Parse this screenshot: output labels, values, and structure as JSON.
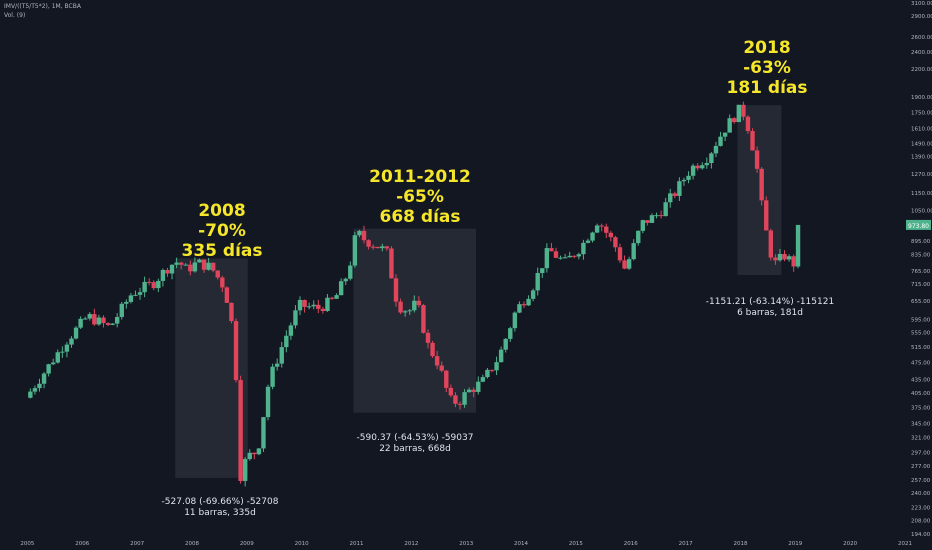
{
  "header": {
    "symbol": "IMV/((T5/T5*2), 1M, BCBA",
    "volume": "Vol. (9)"
  },
  "colors": {
    "background": "#131722",
    "up": "#4fb38d",
    "down": "#e0455c",
    "annotation": "#f5e62a",
    "price_tag": "#4fb38d"
  },
  "annotations": [
    {
      "line1": "2008",
      "line2": "-70%",
      "line3": "335 días"
    },
    {
      "line1": "2011-2012",
      "line2": "-65%",
      "line3": "668 días"
    },
    {
      "line1": "2018",
      "line2": "-63%",
      "line3": "181 días"
    }
  ],
  "measures": [
    {
      "line1": "-527.08 (-69.66%) -52708",
      "line2": "11 barras, 335d"
    },
    {
      "line1": "-590.37 (-64.53%) -59037",
      "line2": "22 barras, 668d"
    },
    {
      "line1": "-1151.21 (-63.14%) -115121",
      "line2": "6 barras, 181d"
    }
  ],
  "price_tag": "973.80",
  "chart_data": {
    "type": "candlestick",
    "y_scale": "log",
    "ylim": [
      190,
      3150
    ],
    "xlim": [
      2004.5,
      2021.0
    ],
    "y_ticks": [
      3100,
      2900,
      2600,
      2400,
      2200,
      1900,
      1750,
      1610,
      1490,
      1390,
      1270,
      1150,
      1050,
      985,
      895,
      835,
      765,
      715,
      655,
      595,
      555,
      515,
      475,
      435,
      405,
      375,
      345,
      321,
      297,
      277,
      257,
      240,
      223,
      208,
      194
    ],
    "x_ticks": [
      2005,
      2006,
      2007,
      2008,
      2009,
      2010,
      2011,
      2012,
      2013,
      2014,
      2015,
      2016,
      2017,
      2018,
      2019,
      2020,
      2021
    ],
    "anchors": [
      [
        2004.97,
        395
      ],
      [
        2005.3,
        450
      ],
      [
        2005.7,
        530
      ],
      [
        2006.1,
        605
      ],
      [
        2006.5,
        570
      ],
      [
        2006.9,
        680
      ],
      [
        2007.3,
        720
      ],
      [
        2007.6,
        790
      ],
      [
        2007.75,
        805
      ],
      [
        2007.9,
        770
      ],
      [
        2008.1,
        800
      ],
      [
        2008.35,
        780
      ],
      [
        2008.6,
        700
      ],
      [
        2008.78,
        535
      ],
      [
        2008.87,
        260
      ],
      [
        2009.0,
        290
      ],
      [
        2009.2,
        300
      ],
      [
        2009.4,
        430
      ],
      [
        2009.7,
        540
      ],
      [
        2009.95,
        640
      ],
      [
        2010.3,
        630
      ],
      [
        2010.6,
        660
      ],
      [
        2010.85,
        760
      ],
      [
        2011.0,
        940
      ],
      [
        2011.15,
        900
      ],
      [
        2011.4,
        870
      ],
      [
        2011.55,
        845
      ],
      [
        2011.75,
        640
      ],
      [
        2011.95,
        620
      ],
      [
        2012.1,
        650
      ],
      [
        2012.3,
        520
      ],
      [
        2012.5,
        470
      ],
      [
        2012.7,
        390
      ],
      [
        2012.85,
        385
      ],
      [
        2013.0,
        405
      ],
      [
        2013.3,
        430
      ],
      [
        2013.6,
        490
      ],
      [
        2013.9,
        620
      ],
      [
        2014.2,
        700
      ],
      [
        2014.5,
        855
      ],
      [
        2014.8,
        800
      ],
      [
        2015.1,
        870
      ],
      [
        2015.4,
        1000
      ],
      [
        2015.7,
        880
      ],
      [
        2015.9,
        770
      ],
      [
        2016.2,
        980
      ],
      [
        2016.5,
        1030
      ],
      [
        2016.8,
        1150
      ],
      [
        2017.1,
        1310
      ],
      [
        2017.4,
        1390
      ],
      [
        2017.7,
        1600
      ],
      [
        2018.0,
        1790
      ],
      [
        2018.1,
        1700
      ],
      [
        2018.28,
        1370
      ],
      [
        2018.42,
        1000
      ],
      [
        2018.6,
        790
      ],
      [
        2018.8,
        830
      ],
      [
        2019.0,
        790
      ],
      [
        2019.05,
        973.8
      ]
    ]
  }
}
